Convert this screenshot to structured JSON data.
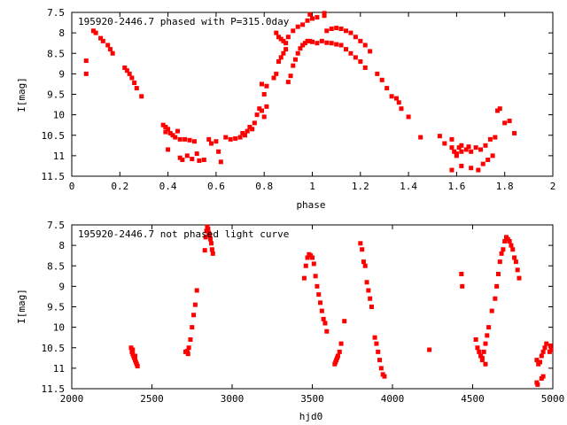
{
  "chart_data": [
    {
      "type": "scatter",
      "title": "195920-2446.7 phased with P=315.0day",
      "xlabel": "phase",
      "ylabel": "I[mag]",
      "xlim": [
        0,
        2
      ],
      "ylim": [
        11.5,
        7.5
      ],
      "y_inverted": true,
      "grid": false,
      "legend": "none",
      "marker_color": "#ff0000",
      "x_ticks": [
        "0",
        "0.2",
        "0.4",
        "0.6",
        "0.8",
        "1",
        "1.2",
        "1.4",
        "1.6",
        "1.8",
        "2"
      ],
      "y_ticks": [
        "7.5",
        "8",
        "8.5",
        "9",
        "9.5",
        "10",
        "10.5",
        "11",
        "11.5"
      ],
      "points": [
        [
          0.06,
          8.68
        ],
        [
          0.06,
          9.0
        ],
        [
          0.09,
          7.95
        ],
        [
          0.1,
          8.0
        ],
        [
          0.12,
          8.13
        ],
        [
          0.13,
          8.2
        ],
        [
          0.15,
          8.3
        ],
        [
          0.16,
          8.4
        ],
        [
          0.17,
          8.5
        ],
        [
          0.22,
          8.85
        ],
        [
          0.23,
          8.92
        ],
        [
          0.24,
          9.0
        ],
        [
          0.25,
          9.1
        ],
        [
          0.26,
          9.22
        ],
        [
          0.27,
          9.35
        ],
        [
          0.29,
          9.55
        ],
        [
          0.38,
          10.25
        ],
        [
          0.39,
          10.3
        ],
        [
          0.39,
          10.42
        ],
        [
          0.4,
          10.35
        ],
        [
          0.41,
          10.45
        ],
        [
          0.42,
          10.5
        ],
        [
          0.43,
          10.55
        ],
        [
          0.44,
          10.4
        ],
        [
          0.45,
          10.6
        ],
        [
          0.47,
          10.6
        ],
        [
          0.49,
          10.62
        ],
        [
          0.51,
          10.65
        ],
        [
          0.4,
          10.85
        ],
        [
          0.45,
          11.05
        ],
        [
          0.46,
          11.1
        ],
        [
          0.48,
          11.0
        ],
        [
          0.5,
          11.08
        ],
        [
          0.52,
          10.95
        ],
        [
          0.53,
          11.12
        ],
        [
          0.55,
          11.1
        ],
        [
          0.57,
          10.6
        ],
        [
          0.58,
          10.7
        ],
        [
          0.6,
          10.65
        ],
        [
          0.61,
          10.9
        ],
        [
          0.62,
          11.15
        ],
        [
          0.64,
          10.55
        ],
        [
          0.66,
          10.6
        ],
        [
          0.68,
          10.58
        ],
        [
          0.7,
          10.55
        ],
        [
          0.71,
          10.45
        ],
        [
          0.72,
          10.5
        ],
        [
          0.73,
          10.4
        ],
        [
          0.74,
          10.3
        ],
        [
          0.75,
          10.35
        ],
        [
          0.76,
          10.2
        ],
        [
          0.77,
          10.0
        ],
        [
          0.78,
          9.85
        ],
        [
          0.79,
          9.9
        ],
        [
          0.8,
          10.05
        ],
        [
          0.81,
          9.8
        ],
        [
          0.8,
          9.5
        ],
        [
          0.79,
          9.25
        ],
        [
          0.81,
          9.3
        ],
        [
          0.84,
          9.1
        ],
        [
          0.85,
          9.0
        ],
        [
          0.86,
          8.7
        ],
        [
          0.87,
          8.6
        ],
        [
          0.88,
          8.5
        ],
        [
          0.89,
          8.4
        ],
        [
          0.9,
          9.2
        ],
        [
          0.91,
          9.05
        ],
        [
          0.92,
          8.8
        ],
        [
          0.93,
          8.65
        ],
        [
          0.94,
          8.5
        ],
        [
          0.95,
          8.38
        ],
        [
          0.96,
          8.3
        ],
        [
          0.97,
          8.25
        ],
        [
          0.98,
          8.2
        ],
        [
          0.99,
          8.2
        ],
        [
          1.0,
          8.22
        ],
        [
          1.02,
          8.25
        ],
        [
          1.04,
          8.2
        ],
        [
          1.06,
          8.24
        ],
        [
          1.08,
          8.25
        ],
        [
          1.1,
          8.28
        ],
        [
          1.12,
          8.3
        ],
        [
          1.14,
          8.4
        ],
        [
          1.16,
          8.5
        ],
        [
          1.18,
          8.6
        ],
        [
          1.2,
          8.7
        ],
        [
          1.22,
          8.85
        ],
        [
          0.85,
          8.0
        ],
        [
          0.86,
          8.1
        ],
        [
          0.87,
          8.15
        ],
        [
          0.88,
          8.2
        ],
        [
          0.89,
          8.25
        ],
        [
          0.9,
          8.1
        ],
        [
          0.92,
          7.95
        ],
        [
          0.94,
          7.85
        ],
        [
          0.96,
          7.8
        ],
        [
          0.98,
          7.7
        ],
        [
          1.0,
          7.65
        ],
        [
          1.02,
          7.62
        ],
        [
          1.05,
          7.58
        ],
        [
          1.06,
          7.95
        ],
        [
          1.08,
          7.9
        ],
        [
          1.1,
          7.88
        ],
        [
          1.12,
          7.9
        ],
        [
          1.14,
          7.95
        ],
        [
          1.16,
          8.0
        ],
        [
          1.18,
          8.1
        ],
        [
          1.2,
          8.2
        ],
        [
          1.22,
          8.3
        ],
        [
          1.24,
          8.45
        ],
        [
          0.99,
          7.55
        ],
        [
          1.05,
          7.52
        ],
        [
          1.27,
          9.0
        ],
        [
          1.29,
          9.15
        ],
        [
          1.31,
          9.35
        ],
        [
          1.33,
          9.55
        ],
        [
          1.35,
          9.6
        ],
        [
          1.36,
          9.7
        ],
        [
          1.37,
          9.85
        ],
        [
          1.4,
          10.05
        ],
        [
          1.45,
          10.55
        ],
        [
          1.53,
          10.52
        ],
        [
          1.55,
          10.7
        ],
        [
          1.58,
          10.6
        ],
        [
          1.58,
          10.8
        ],
        [
          1.59,
          10.9
        ],
        [
          1.6,
          10.95
        ],
        [
          1.61,
          10.8
        ],
        [
          1.62,
          10.9
        ],
        [
          1.64,
          10.85
        ],
        [
          1.66,
          10.9
        ],
        [
          1.68,
          10.8
        ],
        [
          1.7,
          10.85
        ],
        [
          1.72,
          10.75
        ],
        [
          1.74,
          10.6
        ],
        [
          1.76,
          10.55
        ],
        [
          1.58,
          11.35
        ],
        [
          1.62,
          11.25
        ],
        [
          1.66,
          11.3
        ],
        [
          1.69,
          11.35
        ],
        [
          1.71,
          11.2
        ],
        [
          1.73,
          11.1
        ],
        [
          1.75,
          11.0
        ],
        [
          1.77,
          9.9
        ],
        [
          1.78,
          9.85
        ],
        [
          1.8,
          10.2
        ],
        [
          1.82,
          10.15
        ],
        [
          1.84,
          10.45
        ],
        [
          1.62,
          10.75
        ],
        [
          1.65,
          10.78
        ],
        [
          1.6,
          11.0
        ]
      ]
    },
    {
      "type": "scatter",
      "title": "195920-2446.7 not phased light curve",
      "xlabel": "hjd0",
      "ylabel": "I[mag]",
      "xlim": [
        2000,
        5000
      ],
      "ylim": [
        11.5,
        7.5
      ],
      "y_inverted": true,
      "grid": false,
      "legend": "none",
      "marker_color": "#ff0000",
      "x_ticks": [
        "2000",
        "2500",
        "3000",
        "3500",
        "4000",
        "4500",
        "5000"
      ],
      "y_ticks": [
        "7.5",
        "8",
        "8.5",
        "9",
        "9.5",
        "10",
        "10.5",
        "11",
        "11.5"
      ],
      "points": [
        [
          2370,
          10.5
        ],
        [
          2375,
          10.6
        ],
        [
          2380,
          10.65
        ],
        [
          2385,
          10.7
        ],
        [
          2390,
          10.75
        ],
        [
          2395,
          10.8
        ],
        [
          2400,
          10.85
        ],
        [
          2405,
          10.9
        ],
        [
          2410,
          10.95
        ],
        [
          2380,
          10.55
        ],
        [
          2395,
          10.7
        ],
        [
          2710,
          10.6
        ],
        [
          2720,
          10.58
        ],
        [
          2725,
          10.65
        ],
        [
          2730,
          10.5
        ],
        [
          2740,
          10.3
        ],
        [
          2750,
          10.0
        ],
        [
          2760,
          9.7
        ],
        [
          2770,
          9.45
        ],
        [
          2780,
          9.1
        ],
        [
          2830,
          8.12
        ],
        [
          2835,
          7.8
        ],
        [
          2840,
          7.65
        ],
        [
          2845,
          7.55
        ],
        [
          2850,
          7.6
        ],
        [
          2855,
          7.7
        ],
        [
          2860,
          7.75
        ],
        [
          2865,
          7.85
        ],
        [
          2870,
          7.95
        ],
        [
          2875,
          8.1
        ],
        [
          2880,
          8.2
        ],
        [
          3450,
          8.8
        ],
        [
          3460,
          8.5
        ],
        [
          3470,
          8.3
        ],
        [
          3480,
          8.22
        ],
        [
          3490,
          8.25
        ],
        [
          3500,
          8.3
        ],
        [
          3510,
          8.45
        ],
        [
          3520,
          8.75
        ],
        [
          3530,
          9.0
        ],
        [
          3540,
          9.2
        ],
        [
          3550,
          9.4
        ],
        [
          3560,
          9.6
        ],
        [
          3570,
          9.8
        ],
        [
          3580,
          9.9
        ],
        [
          3590,
          10.1
        ],
        [
          3640,
          10.9
        ],
        [
          3645,
          10.85
        ],
        [
          3650,
          10.8
        ],
        [
          3655,
          10.75
        ],
        [
          3660,
          10.7
        ],
        [
          3670,
          10.6
        ],
        [
          3680,
          10.4
        ],
        [
          3700,
          9.85
        ],
        [
          3800,
          7.95
        ],
        [
          3810,
          8.1
        ],
        [
          3820,
          8.4
        ],
        [
          3830,
          8.5
        ],
        [
          3840,
          8.9
        ],
        [
          3850,
          9.1
        ],
        [
          3860,
          9.3
        ],
        [
          3870,
          9.5
        ],
        [
          3890,
          10.25
        ],
        [
          3900,
          10.4
        ],
        [
          3910,
          10.6
        ],
        [
          3920,
          10.8
        ],
        [
          3930,
          11.0
        ],
        [
          3940,
          11.15
        ],
        [
          3950,
          11.2
        ],
        [
          4230,
          10.55
        ],
        [
          4430,
          8.7
        ],
        [
          4435,
          9.0
        ],
        [
          4520,
          10.3
        ],
        [
          4530,
          10.5
        ],
        [
          4540,
          10.6
        ],
        [
          4550,
          10.7
        ],
        [
          4560,
          10.8
        ],
        [
          4570,
          10.6
        ],
        [
          4580,
          10.4
        ],
        [
          4590,
          10.2
        ],
        [
          4600,
          10.0
        ],
        [
          4620,
          9.6
        ],
        [
          4640,
          9.3
        ],
        [
          4650,
          9.0
        ],
        [
          4660,
          8.7
        ],
        [
          4670,
          8.4
        ],
        [
          4680,
          8.2
        ],
        [
          4690,
          8.1
        ],
        [
          4700,
          7.9
        ],
        [
          4710,
          7.8
        ],
        [
          4720,
          7.85
        ],
        [
          4730,
          7.9
        ],
        [
          4740,
          8.0
        ],
        [
          4750,
          8.1
        ],
        [
          4760,
          8.3
        ],
        [
          4770,
          8.4
        ],
        [
          4780,
          8.6
        ],
        [
          4790,
          8.8
        ],
        [
          4560,
          10.75
        ],
        [
          4580,
          10.9
        ],
        [
          4900,
          10.8
        ],
        [
          4910,
          10.9
        ],
        [
          4920,
          10.85
        ],
        [
          4930,
          10.7
        ],
        [
          4940,
          10.6
        ],
        [
          4950,
          10.5
        ],
        [
          4960,
          10.4
        ],
        [
          4980,
          10.6
        ],
        [
          4900,
          11.35
        ],
        [
          4905,
          11.4
        ],
        [
          4930,
          11.25
        ],
        [
          4940,
          11.2
        ],
        [
          4985,
          10.45
        ],
        [
          4990,
          10.55
        ]
      ]
    }
  ]
}
